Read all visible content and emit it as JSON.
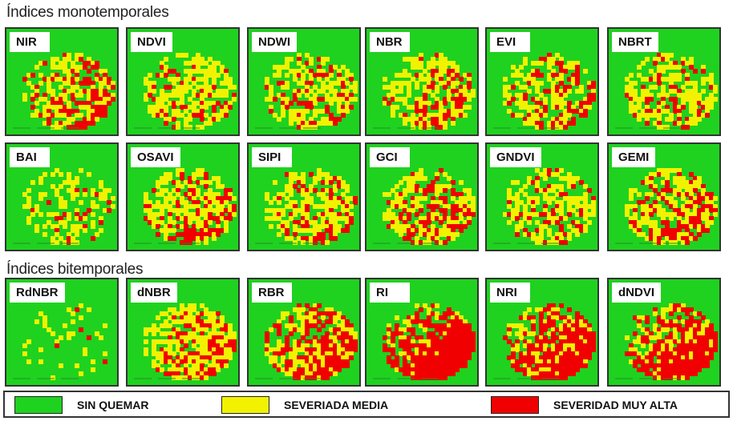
{
  "sections": {
    "mono_title": "Índices monotemporales",
    "bi_title": "Índices bitemporales"
  },
  "colors": {
    "green": "#1fd21f",
    "yellow": "#f2f200",
    "red": "#f00000"
  },
  "tiles": [
    {
      "label": "NIR",
      "yellow_frac": 0.35,
      "red_frac": 0.25
    },
    {
      "label": "NDVI",
      "yellow_frac": 0.45,
      "red_frac": 0.12
    },
    {
      "label": "NDWI",
      "yellow_frac": 0.45,
      "red_frac": 0.15
    },
    {
      "label": "NBR",
      "yellow_frac": 0.45,
      "red_frac": 0.18
    },
    {
      "label": "EVI",
      "yellow_frac": 0.35,
      "red_frac": 0.22
    },
    {
      "label": "NBRT",
      "yellow_frac": 0.45,
      "red_frac": 0.12
    },
    {
      "label": "BAI",
      "yellow_frac": 0.3,
      "red_frac": 0.04
    },
    {
      "label": "OSAVI",
      "yellow_frac": 0.4,
      "red_frac": 0.25
    },
    {
      "label": "SIPI",
      "yellow_frac": 0.4,
      "red_frac": 0.22
    },
    {
      "label": "GCI",
      "yellow_frac": 0.4,
      "red_frac": 0.25
    },
    {
      "label": "GNDVI",
      "yellow_frac": 0.4,
      "red_frac": 0.18
    },
    {
      "label": "GEMI",
      "yellow_frac": 0.4,
      "red_frac": 0.3
    },
    {
      "label": "RdNBR",
      "yellow_frac": 0.1,
      "red_frac": 0.02
    },
    {
      "label": "dNBR",
      "yellow_frac": 0.55,
      "red_frac": 0.25
    },
    {
      "label": "RBR",
      "yellow_frac": 0.35,
      "red_frac": 0.45
    },
    {
      "label": "RI",
      "yellow_frac": 0.2,
      "red_frac": 0.7
    },
    {
      "label": "NRI",
      "yellow_frac": 0.25,
      "red_frac": 0.55
    },
    {
      "label": "dNDVI",
      "yellow_frac": 0.3,
      "red_frac": 0.55
    }
  ],
  "legend": [
    {
      "label": "SIN QUEMAR",
      "color": "#1fd21f"
    },
    {
      "label": "SEVERIADA MEDIA",
      "color": "#f2f200"
    },
    {
      "label": "SEVERIDAD MUY ALTA",
      "color": "#f00000"
    }
  ]
}
